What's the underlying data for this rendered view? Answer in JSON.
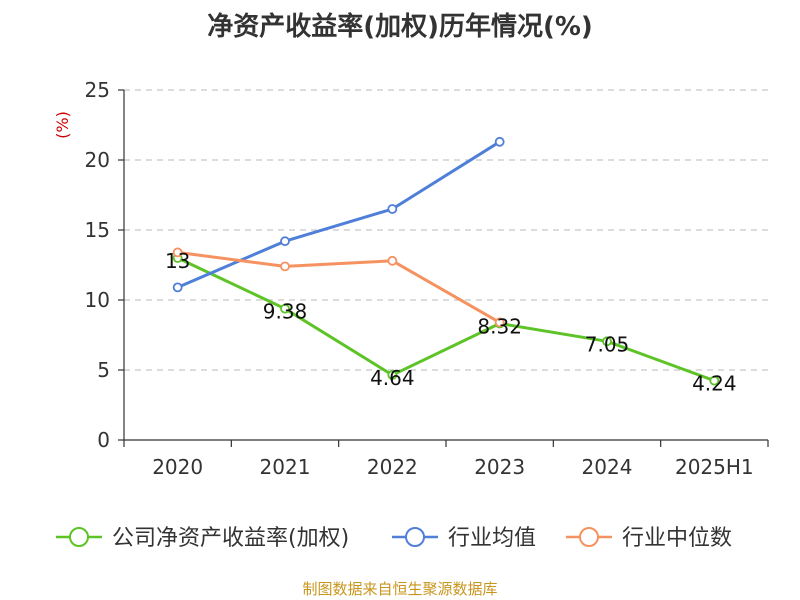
{
  "title": "净资产收益率(加权)历年情况(%)",
  "footer": "制图数据来自恒生聚源数据库",
  "chart_data": {
    "type": "line",
    "title": "净资产收益率(加权)历年情况(%)",
    "ylabel": "(%)",
    "xlabel": "",
    "categories": [
      "2020",
      "2021",
      "2022",
      "2023",
      "2024",
      "2025H1"
    ],
    "ylim": [
      0,
      25
    ],
    "yticks": [
      0,
      5,
      10,
      15,
      20,
      25
    ],
    "grid": true,
    "legend_position": "bottom",
    "series": [
      {
        "name": "公司净资产收益率(加权)",
        "color": "#5dc327",
        "values": [
          13,
          9.38,
          4.64,
          8.32,
          7.05,
          4.24
        ],
        "labels": [
          "13",
          "9.38",
          "4.64",
          "8.32",
          "7.05",
          "4.24"
        ]
      },
      {
        "name": "行业均值",
        "color": "#4f7fd9",
        "values": [
          10.9,
          14.2,
          16.5,
          21.3,
          null,
          null
        ],
        "labels": null
      },
      {
        "name": "行业中位数",
        "color": "#f59260",
        "values": [
          13.4,
          12.4,
          12.8,
          8.4,
          null,
          null
        ],
        "labels": null
      }
    ]
  }
}
